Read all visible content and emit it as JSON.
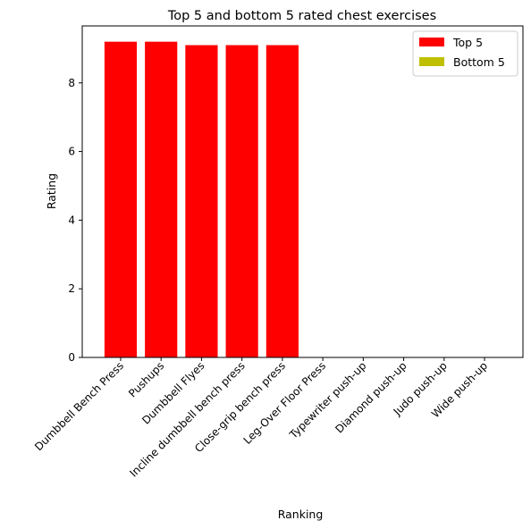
{
  "chart_data": {
    "type": "bar",
    "title": "Top 5 and bottom 5 rated chest exercises",
    "xlabel": "Ranking",
    "ylabel": "Rating",
    "categories": [
      "Dumbbell Bench Press",
      "Pushups",
      "Dumbbell Flyes",
      "Incline dumbbell bench press",
      "Close-grip bench press",
      "Leg-Over Floor Press",
      "Typewriter push-up",
      "Diamond push-up",
      "Judo push-up",
      "Wide push-up"
    ],
    "series": [
      {
        "name": "Top 5",
        "color": "#ff0000",
        "values": [
          9.2,
          9.2,
          9.1,
          9.1,
          9.1,
          null,
          null,
          null,
          null,
          null
        ]
      },
      {
        "name": "Bottom 5",
        "color": "#bfbf00",
        "values": [
          null,
          null,
          null,
          null,
          null,
          0,
          0,
          0,
          0,
          0
        ]
      }
    ],
    "yticks": [
      0,
      2,
      4,
      6,
      8
    ],
    "ylim": [
      0,
      9.66
    ],
    "grid": false,
    "legend_position": "top-right"
  }
}
